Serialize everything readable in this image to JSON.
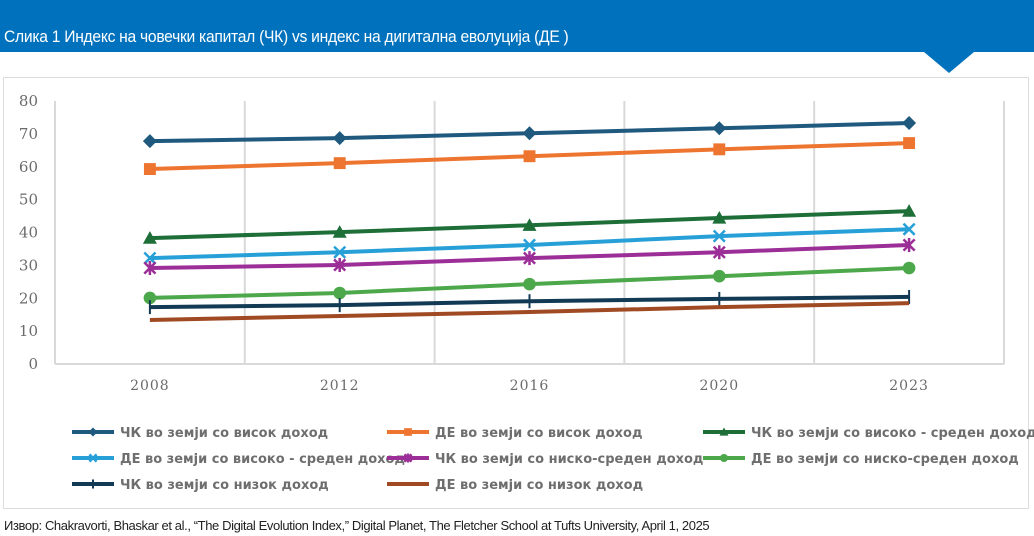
{
  "banner": {
    "title": "Слика 1 Индекс на човечки капитал (ЧК) vs индекс на дигитална еволуција (ДЕ )",
    "color": "#0071bc"
  },
  "source": "Извор: Chakravorti, Bhaskar et al., “The Digital Evolution  Index,” Digital Planet, The Fletcher School at Tufts University,  April 1, 2025",
  "chart_data": {
    "type": "line",
    "title": "Слика 1 Индекс на човечки капитал (ЧК) vs индекс на дигитална еволуција (ДЕ )",
    "xlabel": "",
    "ylabel": "",
    "categories": [
      "2008",
      "2012",
      "2016",
      "2020",
      "2023"
    ],
    "ylim": [
      0,
      80
    ],
    "yticks": [
      "0",
      "10",
      "20",
      "30",
      "40",
      "50",
      "60",
      "70",
      "80"
    ],
    "grid": "vertical",
    "legend_position": "bottom",
    "series": [
      {
        "name": "ЧК во земји со висок доход",
        "color": "#1f5a7e",
        "marker": "diamond",
        "values": [
          67.8,
          68.7,
          70.2,
          71.7,
          73.3
        ]
      },
      {
        "name": "ДЕ во земји со висок доход",
        "color": "#ed7530",
        "marker": "square",
        "values": [
          59.3,
          61.1,
          63.2,
          65.3,
          67.2
        ]
      },
      {
        "name": "ЧК во земји со високо - среден доход",
        "color": "#1e6e38",
        "marker": "triangle",
        "values": [
          38.3,
          40.1,
          42.2,
          44.4,
          46.5
        ]
      },
      {
        "name": "ДЕ во земји со високо - среден доход",
        "color": "#27a0d8",
        "marker": "x",
        "values": [
          32.2,
          34.0,
          36.2,
          38.9,
          41.0
        ]
      },
      {
        "name": "ЧК во земји со ниско-среден доход",
        "color": "#9b2e97",
        "marker": "star",
        "values": [
          29.2,
          30.1,
          32.2,
          34.0,
          36.2
        ]
      },
      {
        "name": "ДЕ во земји со ниско-среден доход",
        "color": "#4ca84a",
        "marker": "circle",
        "values": [
          20.1,
          21.6,
          24.3,
          26.7,
          29.2
        ]
      },
      {
        "name": "ЧК во земји со низок доход",
        "color": "#133a55",
        "marker": "plus",
        "values": [
          17.3,
          17.9,
          19.1,
          19.8,
          20.4
        ]
      },
      {
        "name": "ДЕ во земји со низок доход",
        "color": "#a04a24",
        "marker": "none",
        "values": [
          13.4,
          14.6,
          15.8,
          17.3,
          18.5
        ]
      }
    ]
  }
}
